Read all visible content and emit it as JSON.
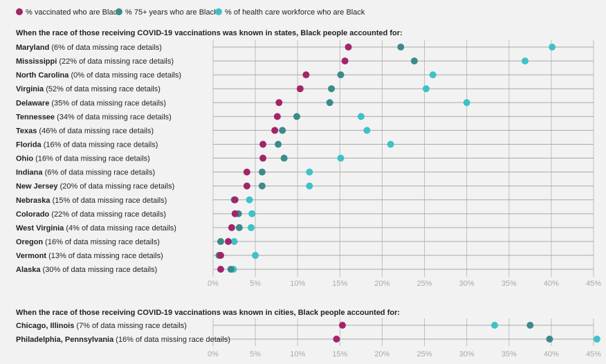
{
  "chart_data": {
    "type": "dot",
    "legend": [
      {
        "key": "vaccinated",
        "label": "% vaccinated who are Black",
        "color": "#a3246a"
      },
      {
        "key": "over75",
        "label": "% 75+ years who are Black",
        "color": "#3b8a8c"
      },
      {
        "key": "healthcare",
        "label": "% of health care workforce who are Black",
        "color": "#3ec2c6"
      }
    ],
    "xlim": [
      0,
      45
    ],
    "xticks": [
      "0%",
      "5%",
      "10%",
      "15%",
      "20%",
      "25%",
      "30%",
      "35%",
      "40%",
      "45%"
    ],
    "panels": [
      {
        "title": "When the race of those receiving COVID-19 vaccinations was known in states, Black people accounted for:",
        "rows": [
          {
            "name": "Maryland",
            "detail": " (6% of data missing race details)",
            "vaccinated": 16,
            "over75": 22.2,
            "healthcare": 40.1
          },
          {
            "name": "Mississippi",
            "detail": " (22% of data missing race details)",
            "vaccinated": 15.6,
            "over75": 23.8,
            "healthcare": 36.9
          },
          {
            "name": "North Carolina",
            "detail": " (0% of data missing race details)",
            "vaccinated": 11,
            "over75": 15.1,
            "healthcare": 26
          },
          {
            "name": "Virginia",
            "detail": " (52% of data missing race details)",
            "vaccinated": 10.3,
            "over75": 14,
            "healthcare": 25.2
          },
          {
            "name": "Delaware",
            "detail": " (35% of data missing race details)",
            "vaccinated": 7.8,
            "over75": 13.8,
            "healthcare": 30
          },
          {
            "name": "Tennessee",
            "detail": " (34% of data missing race details)",
            "vaccinated": 7.6,
            "over75": 9.9,
            "healthcare": 17.5
          },
          {
            "name": "Texas",
            "detail": " (46% of data missing race details)",
            "vaccinated": 7.3,
            "over75": 8.2,
            "healthcare": 18.2
          },
          {
            "name": "Florida",
            "detail": " (16% of data missing race details)",
            "vaccinated": 5.9,
            "over75": 7.7,
            "healthcare": 21
          },
          {
            "name": "Ohio",
            "detail": " (16% of data missing race details)",
            "vaccinated": 5.9,
            "over75": 8.4,
            "healthcare": 15.1
          },
          {
            "name": "Indiana",
            "detail": " (6% of data missing race details)",
            "vaccinated": 4,
            "over75": 5.8,
            "healthcare": 11.4
          },
          {
            "name": "New Jersey",
            "detail": " (20% of data missing race details)",
            "vaccinated": 4,
            "over75": 5.8,
            "healthcare": 11.4
          },
          {
            "name": "Nebraska",
            "detail": " (15% of data missing race details)",
            "vaccinated": 2.6,
            "over75": 2.5,
            "healthcare": 4.3
          },
          {
            "name": "Colorado",
            "detail": " (22% of data missing race details)",
            "vaccinated": 2.6,
            "over75": 3,
            "healthcare": 4.6
          },
          {
            "name": "West Virginia",
            "detail": " (4% of data missing race details)",
            "vaccinated": 2.2,
            "over75": 3.1,
            "healthcare": 4.5
          },
          {
            "name": "Oregon",
            "detail": " (16% of data missing race details)",
            "vaccinated": 1.8,
            "over75": 0.9,
            "healthcare": 2.5
          },
          {
            "name": "Vermont",
            "detail": " (13% of data missing race details)",
            "vaccinated": 0.9,
            "over75": 0.7,
            "healthcare": 5
          },
          {
            "name": "Alaska",
            "detail": " (30% of data missing race details)",
            "vaccinated": 0.9,
            "over75": 2.1,
            "healthcare": 2.4
          }
        ]
      },
      {
        "title": "When the race of those receiving COVID-19 vaccinations was known in cities, Black people accounted for:",
        "rows": [
          {
            "name": "Chicago, Illinois",
            "detail": " (7% of data missing race details)",
            "vaccinated": 15.3,
            "over75": 37.5,
            "healthcare": 33.3
          },
          {
            "name": "Philadelphia, Pennsylvania",
            "detail": " (16% of data missing race details)",
            "vaccinated": 14.6,
            "over75": 39.8,
            "healthcare": 45.4
          }
        ]
      }
    ]
  }
}
